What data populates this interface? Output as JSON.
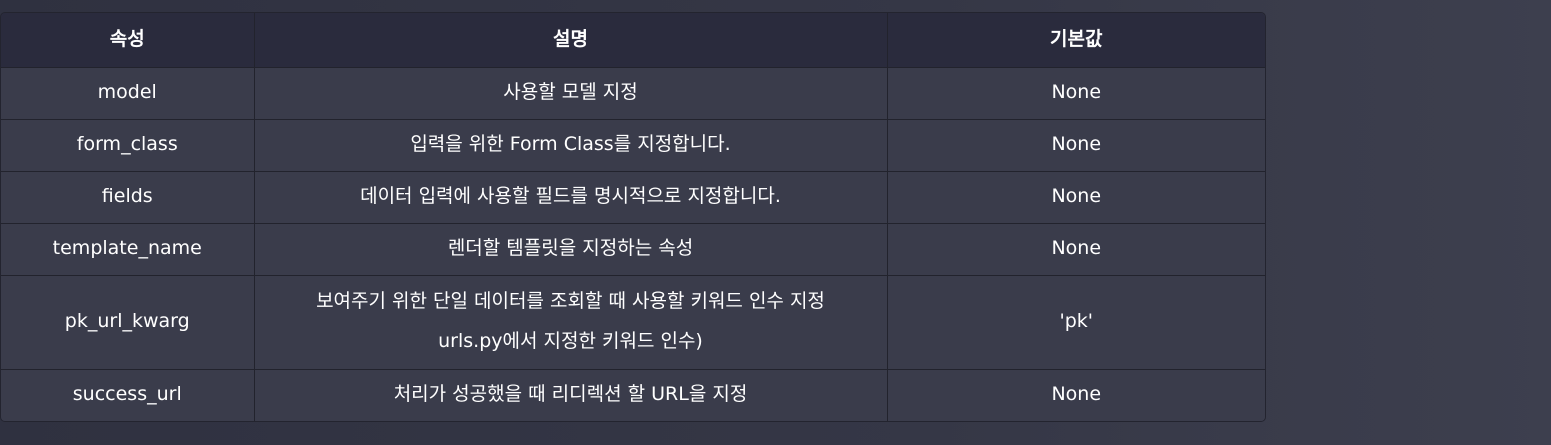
{
  "table": {
    "headers": [
      "속성",
      "설명",
      "기본값"
    ],
    "rows": [
      {
        "attr": "model",
        "desc": [
          "사용할 모델 지정"
        ],
        "default": "None"
      },
      {
        "attr": "form_class",
        "desc": [
          "입력을 위한 Form Class를 지정합니다."
        ],
        "default": "None"
      },
      {
        "attr": "fields",
        "desc": [
          "데이터 입력에 사용할 필드를 명시적으로 지정합니다."
        ],
        "default": "None"
      },
      {
        "attr": "template_name",
        "desc": [
          "렌더할 템플릿을 지정하는 속성"
        ],
        "default": "None"
      },
      {
        "attr": "pk_url_kwarg",
        "desc": [
          "보여주기 위한 단일 데이터를 조회할 때 사용할 키워드 인수 지정",
          "urls.py에서 지정한 키워드 인수)"
        ],
        "default": "'pk'"
      },
      {
        "attr": "success_url",
        "desc": [
          "처리가 성공했을 때 리디렉션 할 URL을 지정"
        ],
        "default": "None"
      }
    ]
  }
}
